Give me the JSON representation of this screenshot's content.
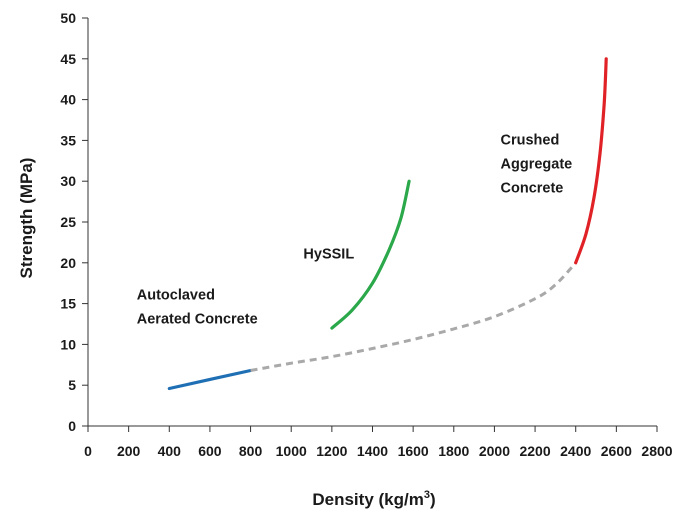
{
  "chart_data": {
    "type": "line",
    "title": "",
    "xlabel": "Density (kg/m",
    "xlabel_sup": "3",
    "xlabel_close": ")",
    "ylabel": "Strength (MPa)",
    "xlim": [
      0,
      2800
    ],
    "ylim": [
      0,
      50
    ],
    "xticks": [
      0,
      200,
      400,
      600,
      800,
      1000,
      1200,
      1400,
      1600,
      1800,
      2000,
      2200,
      2400,
      2600,
      2800
    ],
    "yticks": [
      0,
      5,
      10,
      15,
      20,
      25,
      30,
      35,
      40,
      45,
      50
    ],
    "grid": false,
    "legend": "none",
    "series": [
      {
        "key": "aac",
        "color": "#1f6fb4",
        "style": "solid",
        "x": [
          400,
          800
        ],
        "y": [
          4.6,
          6.8
        ]
      },
      {
        "key": "trend",
        "color": "#a9a9a9",
        "style": "dashed",
        "x": [
          800,
          1000,
          1200,
          1400,
          1600,
          1800,
          2000,
          2200,
          2300,
          2400
        ],
        "y": [
          6.8,
          7.7,
          8.5,
          9.5,
          10.6,
          11.9,
          13.4,
          15.6,
          17.3,
          20
        ]
      },
      {
        "key": "hyssil",
        "color": "#2aa84a",
        "style": "solid",
        "x": [
          1200,
          1300,
          1400,
          1480,
          1540,
          1580
        ],
        "y": [
          12,
          14.2,
          17.5,
          21.5,
          25.5,
          30
        ]
      },
      {
        "key": "crushed",
        "color": "#e02227",
        "style": "solid",
        "x": [
          2400,
          2450,
          2490,
          2520,
          2540,
          2550
        ],
        "y": [
          20,
          23.5,
          28,
          33.5,
          39.5,
          45
        ]
      }
    ],
    "annotations": [
      {
        "key": "aac",
        "lines": [
          "Autoclaved",
          "Aerated Concrete"
        ],
        "x": 240,
        "y": 15.5
      },
      {
        "key": "hyssil",
        "lines": [
          "HySSIL"
        ],
        "x": 1060,
        "y": 20.5
      },
      {
        "key": "crushed",
        "lines": [
          "Crushed",
          "Aggregate",
          "Concrete"
        ],
        "x": 2030,
        "y": 34.5
      }
    ]
  }
}
